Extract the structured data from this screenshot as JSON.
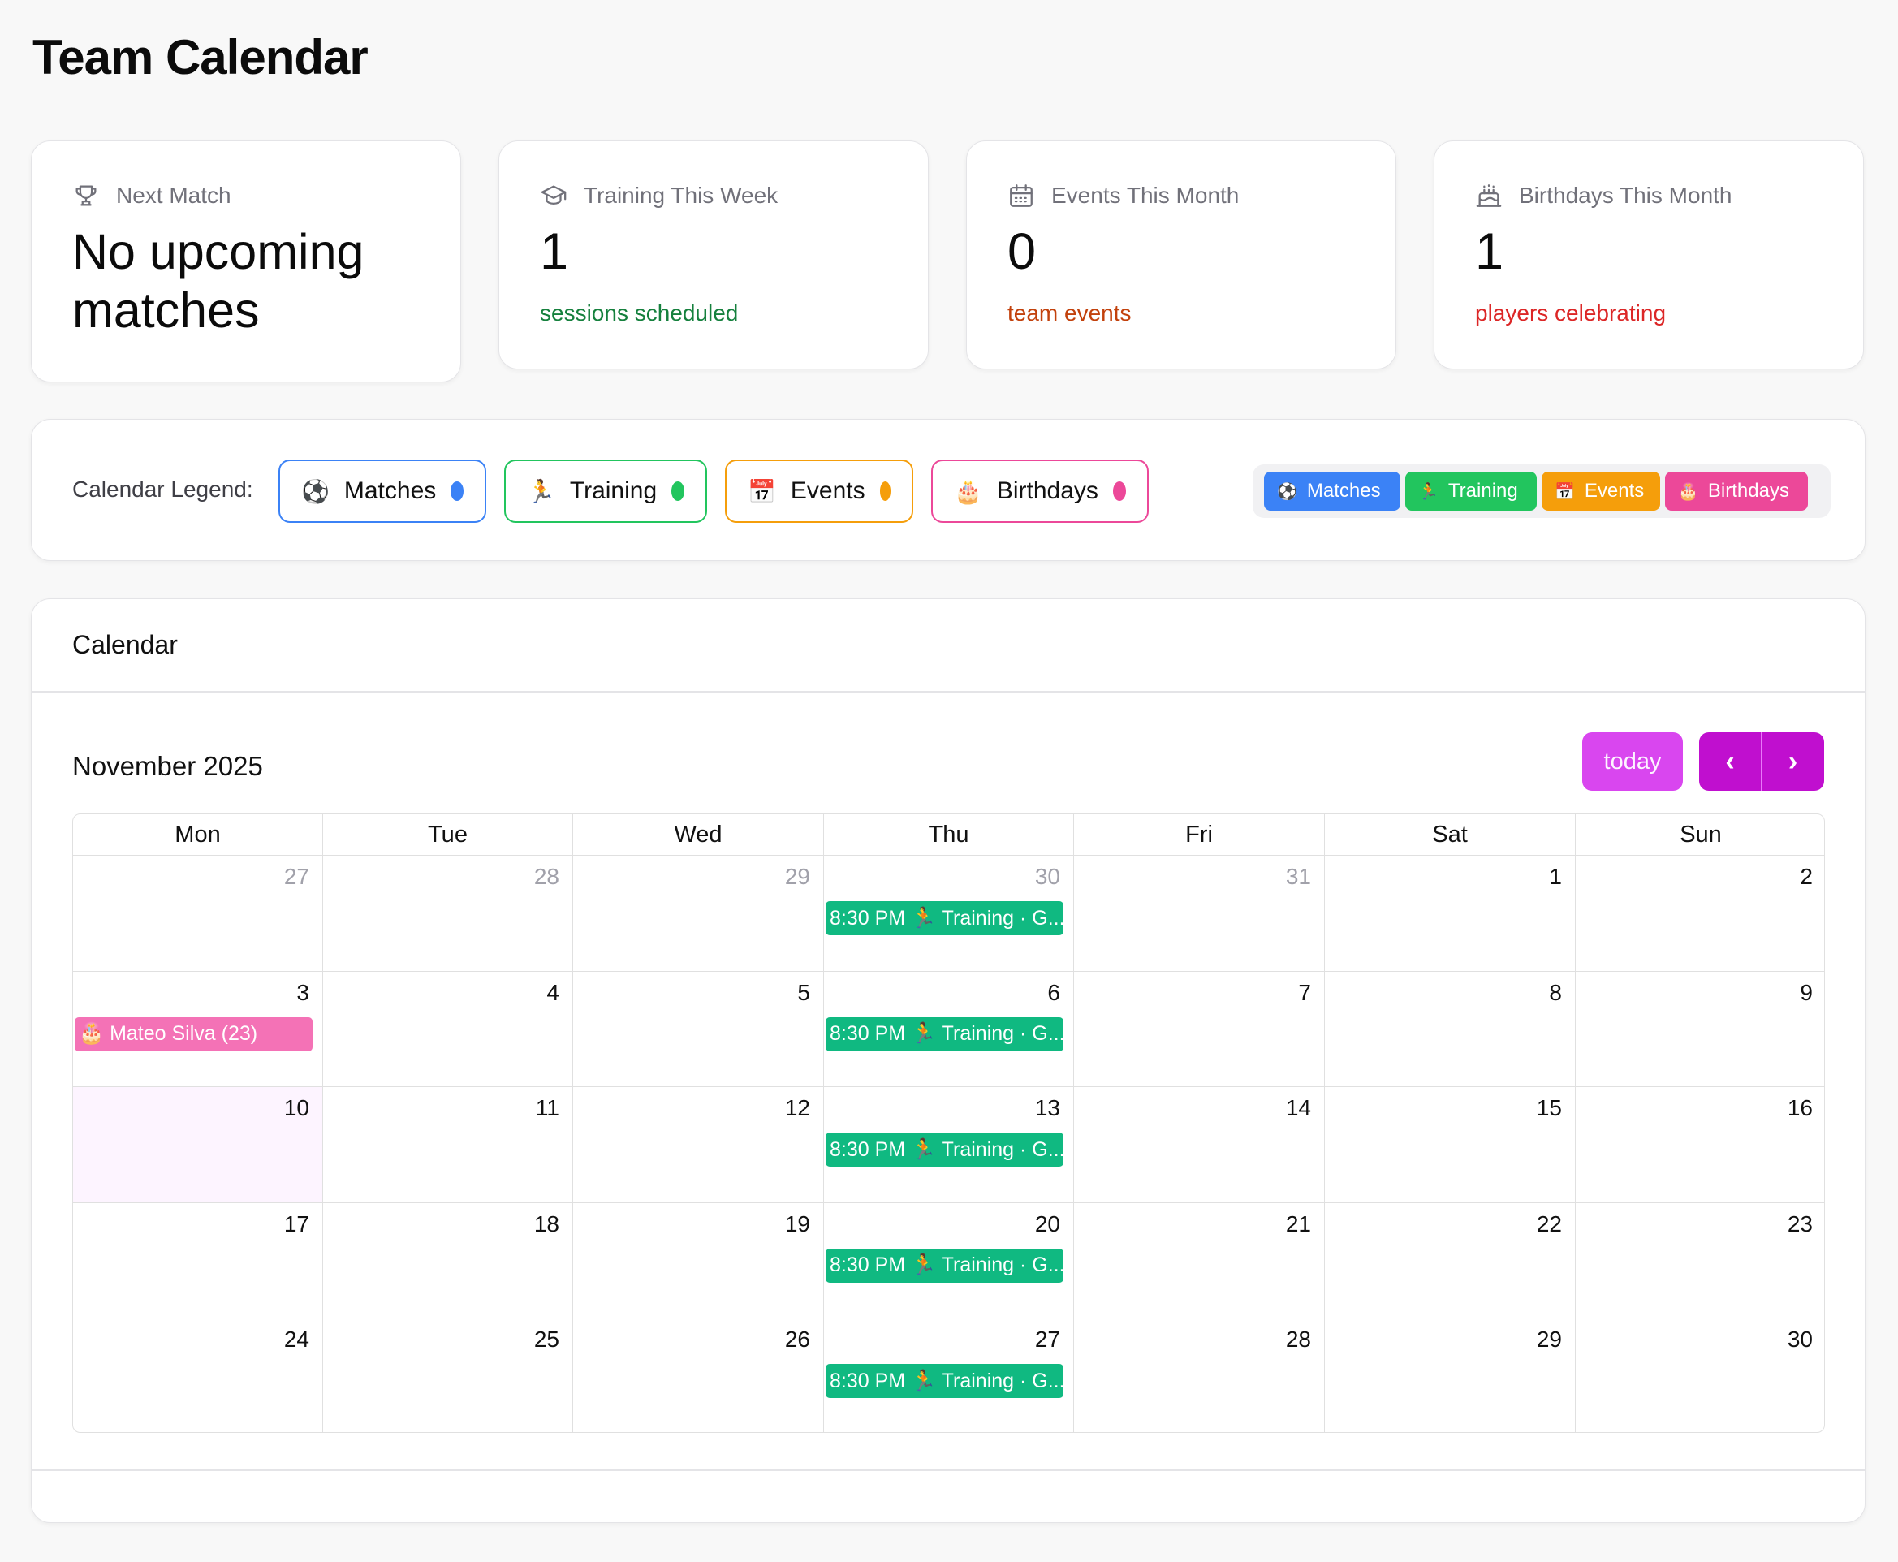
{
  "page": {
    "title": "Team Calendar"
  },
  "stats": [
    {
      "icon": "trophy-icon",
      "label": "Next Match",
      "value": "No upcoming matches",
      "sub": "",
      "sub_color": ""
    },
    {
      "icon": "graduation-cap-icon",
      "label": "Training This Week",
      "value": "1",
      "sub": "sessions scheduled",
      "sub_color": "#15803d"
    },
    {
      "icon": "calendar-icon",
      "label": "Events This Month",
      "value": "0",
      "sub": "team events",
      "sub_color": "#c2410c"
    },
    {
      "icon": "cake-icon",
      "label": "Birthdays This Month",
      "value": "1",
      "sub": "players celebrating",
      "sub_color": "#dc2626"
    }
  ],
  "legend": {
    "label": "Calendar Legend:",
    "chips": [
      {
        "emoji": "⚽",
        "label": "Matches",
        "color": "#3b82f6"
      },
      {
        "emoji": "🏃",
        "label": "Training",
        "color": "#22c55e"
      },
      {
        "emoji": "📅",
        "label": "Events",
        "color": "#f59e0b"
      },
      {
        "emoji": "🎂",
        "label": "Birthdays",
        "color": "#ec4899"
      }
    ]
  },
  "calendar": {
    "title": "Calendar",
    "month": "November 2025",
    "today_label": "today",
    "prev_label": "‹",
    "next_label": "›",
    "weekdays": [
      "Mon",
      "Tue",
      "Wed",
      "Thu",
      "Fri",
      "Sat",
      "Sun"
    ],
    "weeks": [
      [
        {
          "day": "27",
          "other": true
        },
        {
          "day": "28",
          "other": true
        },
        {
          "day": "29",
          "other": true
        },
        {
          "day": "30",
          "other": true,
          "event": {
            "type": "training",
            "text": "8:30 PM 🏃 Training · G..."
          }
        },
        {
          "day": "31",
          "other": true
        },
        {
          "day": "1"
        },
        {
          "day": "2"
        }
      ],
      [
        {
          "day": "3",
          "event": {
            "type": "birthday",
            "text": "🎂 Mateo Silva (23)"
          }
        },
        {
          "day": "4"
        },
        {
          "day": "5"
        },
        {
          "day": "6",
          "event": {
            "type": "training",
            "text": "8:30 PM 🏃 Training · G..."
          }
        },
        {
          "day": "7"
        },
        {
          "day": "8"
        },
        {
          "day": "9"
        }
      ],
      [
        {
          "day": "10",
          "today": true
        },
        {
          "day": "11"
        },
        {
          "day": "12"
        },
        {
          "day": "13",
          "event": {
            "type": "training",
            "text": "8:30 PM 🏃 Training · G..."
          }
        },
        {
          "day": "14"
        },
        {
          "day": "15"
        },
        {
          "day": "16"
        }
      ],
      [
        {
          "day": "17"
        },
        {
          "day": "18"
        },
        {
          "day": "19"
        },
        {
          "day": "20",
          "event": {
            "type": "training",
            "text": "8:30 PM 🏃 Training · G..."
          }
        },
        {
          "day": "21"
        },
        {
          "day": "22"
        },
        {
          "day": "23"
        }
      ],
      [
        {
          "day": "24"
        },
        {
          "day": "25"
        },
        {
          "day": "26"
        },
        {
          "day": "27",
          "event": {
            "type": "training",
            "text": "8:30 PM 🏃 Training · G..."
          }
        },
        {
          "day": "28"
        },
        {
          "day": "29"
        },
        {
          "day": "30"
        }
      ]
    ]
  }
}
